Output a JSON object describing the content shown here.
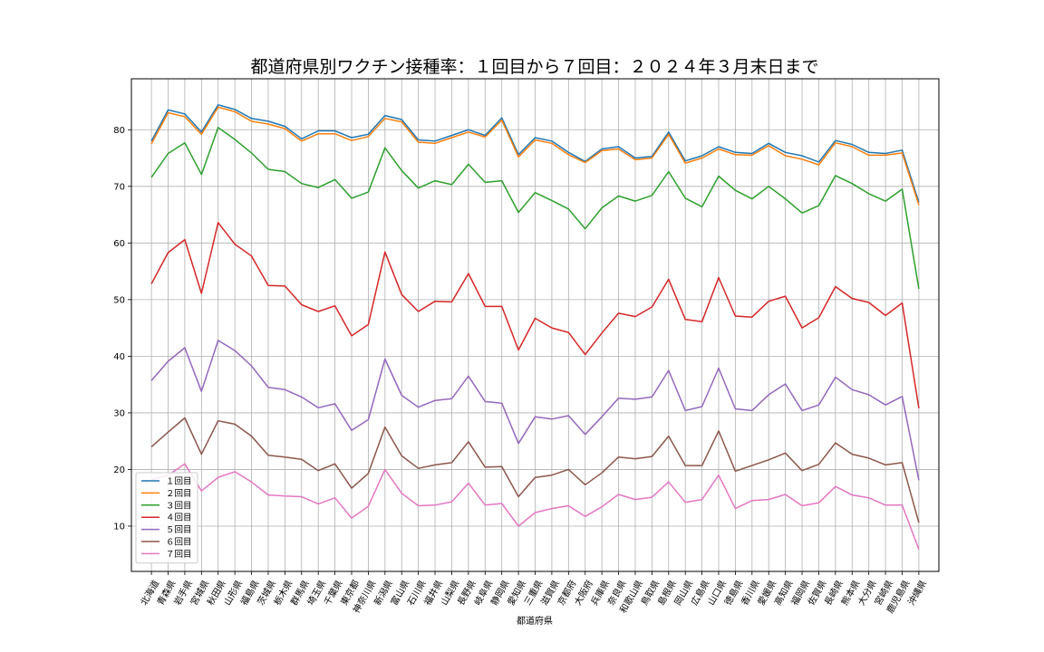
{
  "chart_data": {
    "type": "line",
    "title": "都道府県別ワクチン接種率：１回目から７回目：２０２４年３月末日まで",
    "xlabel": "都道府県",
    "ylabel": "",
    "ylim": [
      2,
      89
    ],
    "yticks": [
      10,
      20,
      30,
      40,
      50,
      60,
      70,
      80
    ],
    "grid": true,
    "legend_position": "lower-left",
    "categories": [
      "北海道",
      "青森県",
      "岩手県",
      "宮城県",
      "秋田県",
      "山形県",
      "福島県",
      "茨城県",
      "栃木県",
      "群馬県",
      "埼玉県",
      "千葉県",
      "東京都",
      "神奈川県",
      "新潟県",
      "富山県",
      "石川県",
      "福井県",
      "山梨県",
      "長野県",
      "岐阜県",
      "静岡県",
      "愛知県",
      "三重県",
      "滋賀県",
      "京都府",
      "大阪府",
      "兵庫県",
      "奈良県",
      "和歌山県",
      "鳥取県",
      "島根県",
      "岡山県",
      "広島県",
      "山口県",
      "徳島県",
      "香川県",
      "愛媛県",
      "高知県",
      "福岡県",
      "佐賀県",
      "長崎県",
      "熊本県",
      "大分県",
      "宮崎県",
      "鹿児島県",
      "沖縄県"
    ],
    "series": [
      {
        "name": "１回目",
        "color": "#1f77b4",
        "values": [
          78.0,
          83.5,
          82.8,
          79.6,
          84.4,
          83.6,
          82.0,
          81.5,
          80.6,
          78.4,
          79.8,
          79.8,
          78.6,
          79.2,
          82.5,
          81.8,
          78.2,
          78.0,
          79.0,
          80.0,
          79.0,
          82.1,
          75.6,
          78.6,
          78.0,
          76.0,
          74.4,
          76.6,
          77.0,
          75.0,
          75.3,
          79.6,
          74.5,
          75.4,
          77.0,
          76.0,
          75.8,
          77.6,
          76.0,
          75.4,
          74.3,
          78.1,
          77.4,
          76.0,
          75.8,
          76.4,
          67.2
        ]
      },
      {
        "name": "２回目",
        "color": "#ff7f0e",
        "values": [
          77.5,
          83.0,
          82.3,
          79.2,
          84.0,
          83.2,
          81.5,
          81.0,
          80.2,
          78.0,
          79.3,
          79.3,
          78.1,
          78.8,
          82.0,
          81.4,
          77.8,
          77.6,
          78.6,
          79.6,
          78.7,
          81.7,
          75.2,
          78.2,
          77.6,
          75.6,
          74.2,
          76.3,
          76.6,
          74.7,
          75.0,
          79.2,
          74.1,
          75.0,
          76.6,
          75.6,
          75.5,
          77.2,
          75.4,
          74.8,
          73.8,
          77.7,
          77.0,
          75.5,
          75.5,
          75.9,
          66.7
        ]
      },
      {
        "name": "３回目",
        "color": "#2ca02c",
        "values": [
          71.6,
          75.8,
          77.7,
          72.1,
          80.4,
          78.3,
          75.9,
          73.0,
          72.6,
          70.5,
          69.8,
          71.2,
          67.9,
          69.0,
          76.8,
          72.8,
          69.7,
          71.0,
          70.3,
          73.9,
          70.7,
          71.0,
          65.4,
          68.9,
          67.5,
          66.0,
          62.5,
          66.2,
          68.3,
          67.4,
          68.4,
          72.6,
          67.9,
          66.4,
          71.8,
          69.3,
          67.8,
          70.0,
          67.8,
          65.3,
          66.6,
          71.9,
          70.5,
          68.7,
          67.4,
          69.5,
          51.9
        ]
      },
      {
        "name": "４回目",
        "color": "#d62728",
        "values": [
          52.8,
          58.3,
          60.6,
          51.1,
          63.6,
          59.8,
          57.7,
          52.5,
          52.4,
          49.1,
          47.9,
          48.9,
          43.6,
          45.6,
          58.4,
          50.9,
          47.9,
          49.7,
          49.6,
          54.6,
          48.8,
          48.8,
          41.1,
          46.7,
          45.0,
          44.2,
          40.3,
          44.1,
          47.6,
          47.0,
          48.7,
          53.6,
          46.5,
          46.1,
          53.9,
          47.1,
          46.9,
          49.7,
          50.6,
          45.0,
          46.8,
          52.3,
          50.2,
          49.5,
          47.2,
          49.4,
          30.8
        ]
      },
      {
        "name": "５回目",
        "color": "#9467bd",
        "values": [
          35.7,
          39.1,
          41.5,
          33.8,
          42.8,
          41.0,
          38.3,
          34.5,
          34.1,
          32.8,
          30.9,
          31.6,
          26.9,
          28.8,
          39.5,
          33.1,
          31.0,
          32.2,
          32.5,
          36.5,
          32.0,
          31.7,
          24.6,
          29.3,
          28.9,
          29.5,
          26.2,
          29.3,
          32.6,
          32.4,
          32.8,
          37.5,
          30.4,
          31.1,
          37.9,
          30.7,
          30.4,
          33.2,
          35.1,
          30.4,
          31.4,
          36.3,
          34.1,
          33.2,
          31.4,
          32.9,
          18.1
        ]
      },
      {
        "name": "６回目",
        "color": "#8c564b",
        "values": [
          24.0,
          26.6,
          29.1,
          22.7,
          28.6,
          28.0,
          25.9,
          22.5,
          22.2,
          21.8,
          19.8,
          21.0,
          16.7,
          19.3,
          27.5,
          22.4,
          20.2,
          20.8,
          21.2,
          24.9,
          20.4,
          20.5,
          15.2,
          18.6,
          19.0,
          20.0,
          17.3,
          19.4,
          22.2,
          21.9,
          22.3,
          25.9,
          20.7,
          20.7,
          26.8,
          19.7,
          20.7,
          21.7,
          22.9,
          19.8,
          20.9,
          24.7,
          22.7,
          22.0,
          20.8,
          21.2,
          10.6
        ]
      },
      {
        "name": "７回目",
        "color": "#e377c2",
        "values": [
          18.2,
          19.0,
          21.0,
          16.2,
          18.6,
          19.6,
          17.8,
          15.5,
          15.3,
          15.2,
          13.9,
          15.0,
          11.4,
          13.5,
          20.0,
          15.8,
          13.6,
          13.7,
          14.3,
          17.6,
          13.7,
          14.0,
          10.0,
          12.4,
          13.1,
          13.6,
          11.7,
          13.4,
          15.6,
          14.7,
          15.1,
          17.8,
          14.2,
          14.7,
          19.0,
          13.1,
          14.5,
          14.7,
          15.6,
          13.6,
          14.1,
          17.0,
          15.5,
          15.0,
          13.7,
          13.7,
          5.9
        ]
      }
    ]
  }
}
